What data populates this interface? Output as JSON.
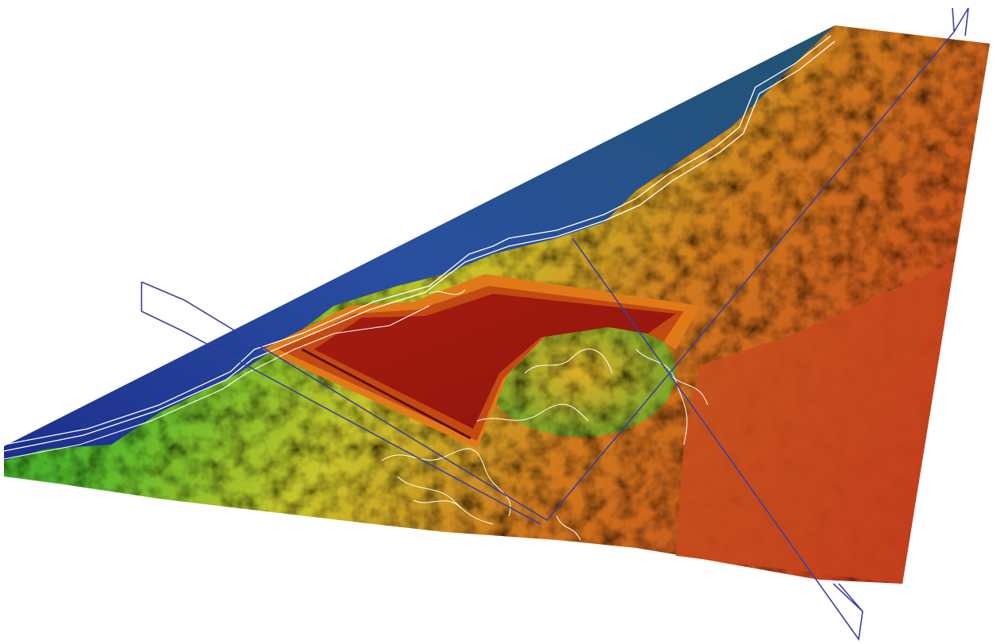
{
  "view": {
    "background_color": "#ffffff",
    "kind": "3d-terrain-elevation-model"
  },
  "palette": {
    "sea_dark": "#1b2c8c",
    "sea_blue": "#2a4fa0",
    "sea_teal": "#1f5566",
    "coast_green": "#1f9a2a",
    "low_green": "#58b82a",
    "mid_yellow": "#c8c42a",
    "mid_orange": "#d07a1e",
    "high_red": "#b8281a",
    "pit_red": "#a11a10",
    "contour_color": "#ffffff",
    "section_plane_color": "#3b3f9e"
  },
  "layers": {
    "sea": true,
    "coast": true,
    "hillshade": true,
    "excavation_pit": true,
    "contours": true,
    "section_planes": 2
  }
}
